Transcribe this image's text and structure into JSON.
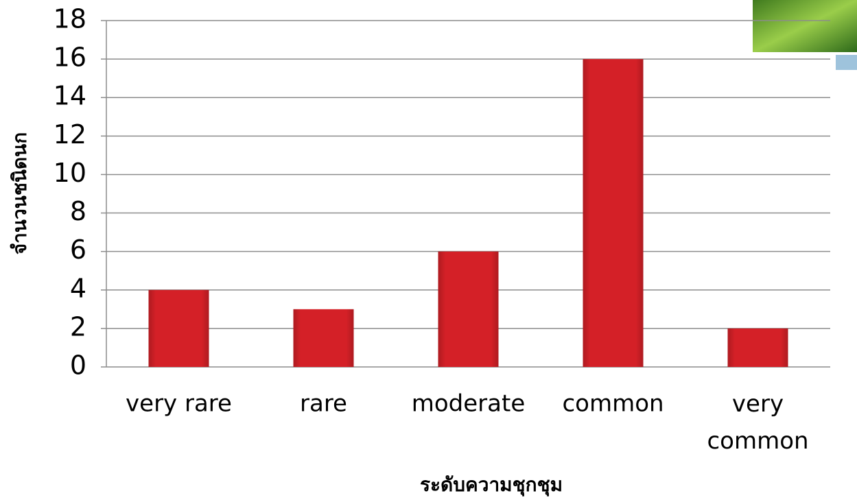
{
  "chart_data": {
    "type": "bar",
    "x_label": "ระดับความชุกชุม",
    "y_label": "จำนวนชนิดนก",
    "categories": [
      "very rare",
      "rare",
      "moderate",
      "common",
      "very common"
    ],
    "values": [
      4,
      3,
      6,
      16,
      2
    ],
    "color": "#d42027",
    "ylim": [
      0,
      18
    ],
    "yticks": [
      0,
      2,
      4,
      6,
      8,
      10,
      12,
      14,
      16,
      18
    ],
    "grid": true
  }
}
